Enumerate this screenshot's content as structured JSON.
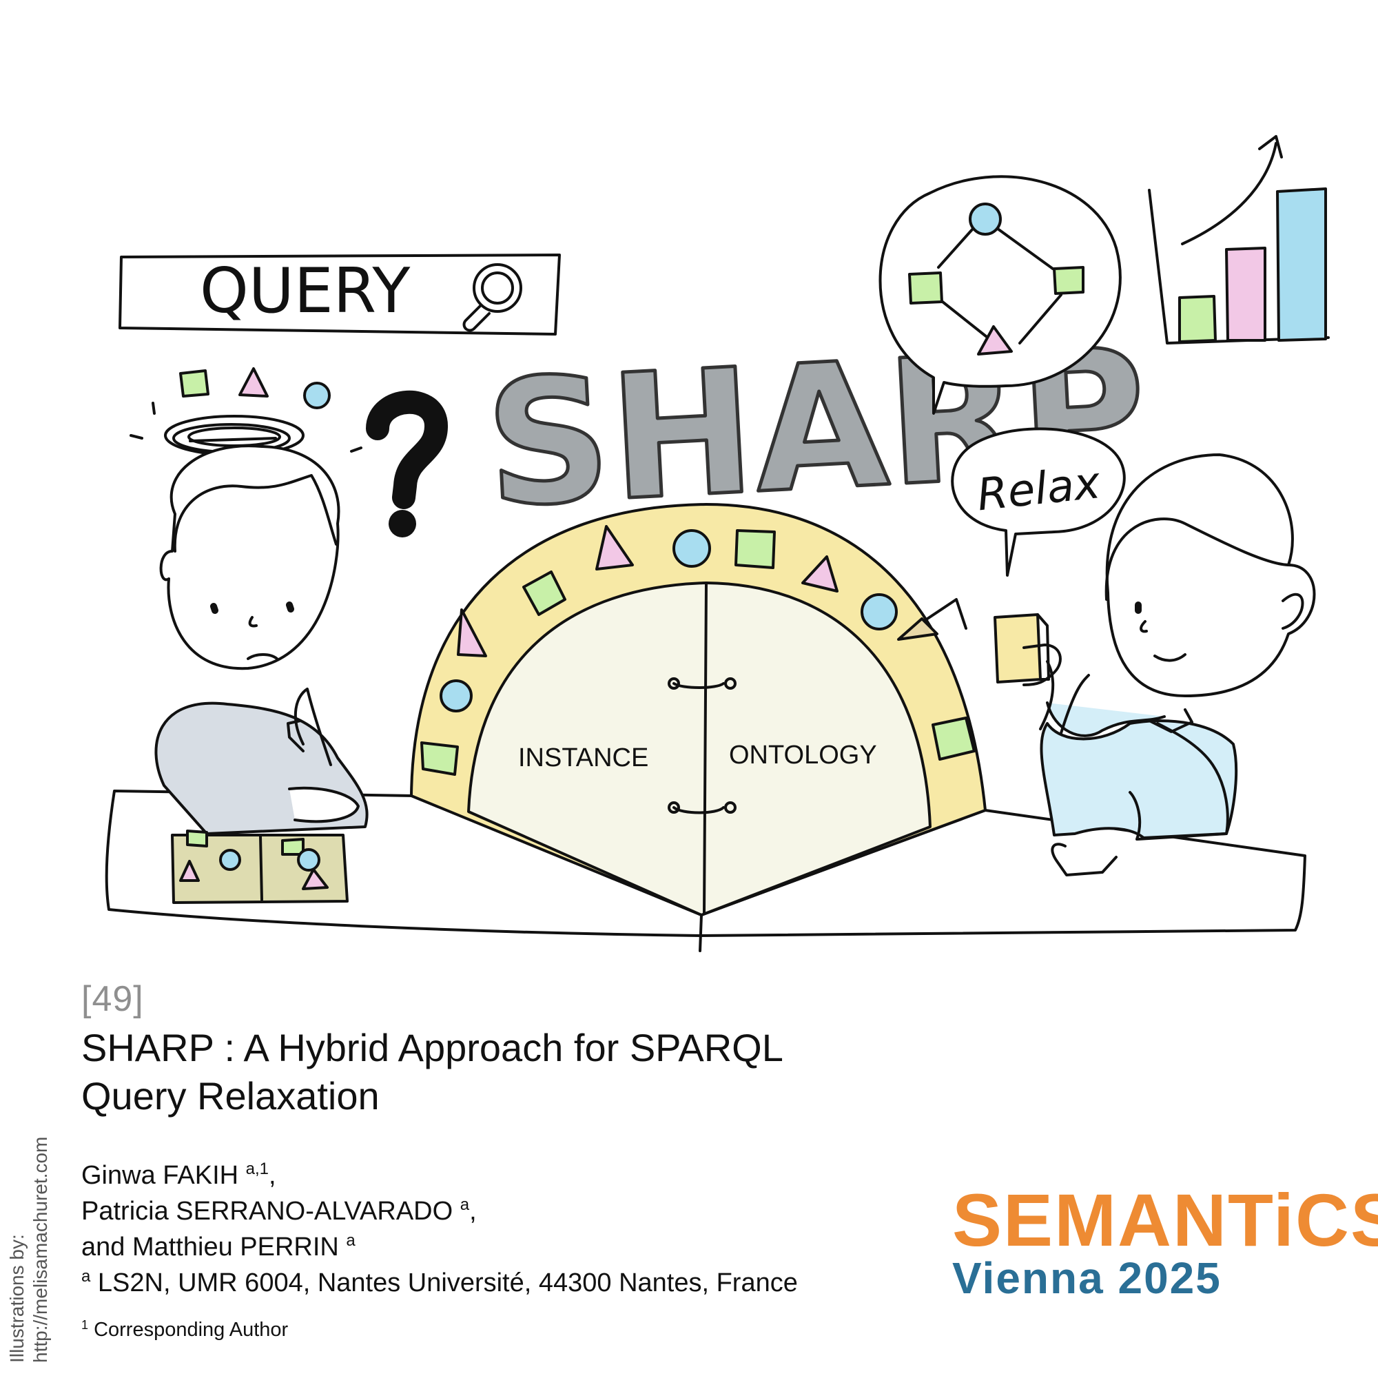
{
  "illustration": {
    "search_label": "QUERY",
    "logo_text": "SHARP",
    "speech_text": "Relax",
    "left_half_label": "INSTANCE",
    "right_half_label": "ONTOLOGY",
    "colors": {
      "shape_green": "#c8f0a8",
      "shape_pink": "#f2c8e6",
      "shape_blue": "#a8ddf0",
      "arch_yellow": "#f7e9a6",
      "logo_gray": "#a3a8ab",
      "sweater_gray": "#d7dde4",
      "sweater_blue": "#d4eef8",
      "box_olive": "#dedcb0",
      "semicircle_fill": "#f6f6e8"
    }
  },
  "paper": {
    "number": "[49]",
    "title_line1": "SHARP : A Hybrid Approach for SPARQL",
    "title_line2": "Query Relaxation",
    "authors": [
      {
        "name": "Ginwa FAKIH ",
        "sup": "a,1",
        "suffix": ","
      },
      {
        "name": "Patricia SERRANO-ALVARADO ",
        "sup": "a",
        "suffix": ","
      },
      {
        "name": "and Matthieu PERRIN ",
        "sup": "a",
        "suffix": ""
      }
    ],
    "affiliation_sup": "a",
    "affiliation": " LS2N, UMR 6004, Nantes Université, 44300 Nantes, France",
    "footnote_sup": "1",
    "footnote": " Corresponding Author"
  },
  "credit": {
    "line1": "Illustrations by:",
    "line2": "http://melisamachuret.com"
  },
  "conference": {
    "name": "SEMANTiCS",
    "location": "Vienna 2025",
    "name_color": "#ee8b33",
    "location_color": "#2a6f96"
  }
}
